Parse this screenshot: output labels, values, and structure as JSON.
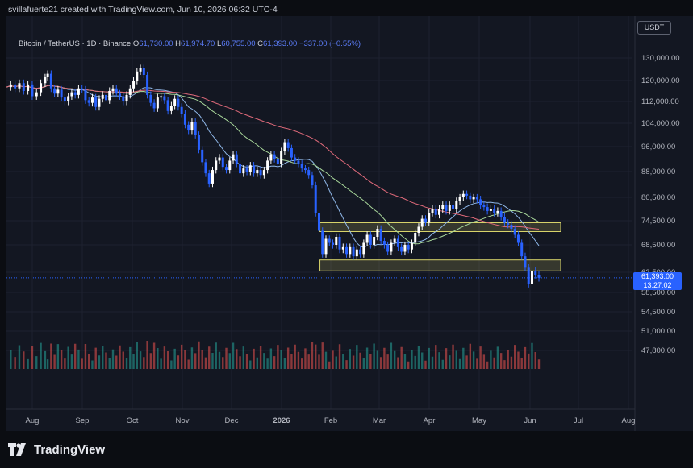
{
  "header": {
    "credit": "svillafuerte21 created with TradingView.com, Jun 10, 2026 06:32 UTC-4"
  },
  "legend": {
    "symbol": "Bitcoin / TetherUS · 1D · Binance",
    "o_label": "O",
    "o_value": "61,730.00",
    "h_label": "H",
    "h_value": "61,974.70",
    "l_label": "L",
    "l_value": "60,755.00",
    "c_label": "C",
    "c_value": "61,393.00",
    "change": "−337.00 (−0.55%)"
  },
  "currency": "USDT",
  "price_label": {
    "price": "61,393.00",
    "countdown": "13:27:02"
  },
  "brand": {
    "name": "TradingView"
  },
  "colors": {
    "background": "#131722",
    "up": "#ffffff",
    "down": "#2962ff",
    "ma_fast": "#8fb7e8",
    "ma_mid": "#a9d89b",
    "ma_slow": "#e06a7a",
    "zone": "#d7d36a",
    "vol_up": "#26a69a",
    "vol_down": "#ef5350"
  },
  "chart_data": {
    "type": "candlestick",
    "y_ticks": [
      "130,000.00",
      "120,000.00",
      "112,000.00",
      "104,000.00",
      "96,000.00",
      "88,000.00",
      "80,500.00",
      "74,500.00",
      "68,500.00",
      "62,500.00",
      "58,500.00",
      "54,500.00",
      "51,000.00",
      "47,800.00"
    ],
    "x_ticks": [
      "Aug",
      "Sep",
      "Oct",
      "Nov",
      "Dec",
      "2026",
      "Feb",
      "Mar",
      "Apr",
      "May",
      "Jun",
      "Jul",
      "Aug"
    ],
    "last_price": 61393,
    "zones": [
      {
        "low": 71800,
        "high": 74000
      },
      {
        "low": 62800,
        "high": 65200
      }
    ],
    "moving_averages": [
      "fast",
      "mid",
      "slow"
    ],
    "price_path": [
      [
        0,
        117500
      ],
      [
        5,
        118500
      ],
      [
        10,
        117000
      ],
      [
        15,
        119000
      ],
      [
        20,
        116000
      ],
      [
        25,
        118500
      ],
      [
        30,
        114000
      ],
      [
        35,
        115500
      ],
      [
        40,
        119000
      ],
      [
        45,
        121500
      ],
      [
        48,
        123000
      ],
      [
        52,
        117000
      ],
      [
        56,
        115000
      ],
      [
        60,
        116500
      ],
      [
        64,
        113500
      ],
      [
        68,
        112000
      ],
      [
        72,
        114000
      ],
      [
        76,
        115500
      ],
      [
        80,
        114500
      ],
      [
        84,
        117000
      ],
      [
        88,
        116500
      ],
      [
        92,
        112500
      ],
      [
        96,
        111500
      ],
      [
        100,
        113500
      ],
      [
        104,
        110000
      ],
      [
        108,
        113000
      ],
      [
        112,
        114500
      ],
      [
        116,
        112500
      ],
      [
        120,
        116000
      ],
      [
        124,
        117000
      ],
      [
        128,
        115000
      ],
      [
        132,
        114000
      ],
      [
        136,
        112000
      ],
      [
        140,
        114500
      ],
      [
        144,
        117000
      ],
      [
        148,
        120000
      ],
      [
        152,
        124000
      ],
      [
        156,
        125500
      ],
      [
        160,
        122500
      ],
      [
        164,
        114500
      ],
      [
        168,
        111500
      ],
      [
        172,
        109500
      ],
      [
        176,
        113500
      ],
      [
        180,
        114000
      ],
      [
        184,
        112500
      ],
      [
        188,
        108500
      ],
      [
        192,
        110500
      ],
      [
        196,
        113000
      ],
      [
        200,
        110000
      ],
      [
        204,
        107500
      ],
      [
        208,
        103500
      ],
      [
        212,
        101500
      ],
      [
        216,
        104500
      ],
      [
        220,
        100000
      ],
      [
        224,
        95000
      ],
      [
        228,
        91000
      ],
      [
        232,
        87500
      ],
      [
        236,
        84500
      ],
      [
        240,
        88500
      ],
      [
        244,
        91500
      ],
      [
        248,
        92500
      ],
      [
        252,
        89500
      ],
      [
        256,
        88500
      ],
      [
        260,
        91500
      ],
      [
        264,
        93500
      ],
      [
        268,
        90500
      ],
      [
        272,
        87500
      ],
      [
        276,
        89000
      ],
      [
        280,
        88000
      ],
      [
        284,
        90000
      ],
      [
        288,
        87500
      ],
      [
        292,
        88500
      ],
      [
        296,
        87000
      ],
      [
        300,
        88500
      ],
      [
        304,
        91500
      ],
      [
        308,
        93500
      ],
      [
        312,
        92000
      ],
      [
        316,
        90500
      ],
      [
        320,
        94500
      ],
      [
        324,
        97500
      ],
      [
        328,
        95500
      ],
      [
        332,
        92500
      ],
      [
        336,
        91500
      ],
      [
        340,
        90500
      ],
      [
        344,
        89000
      ],
      [
        348,
        88500
      ],
      [
        352,
        87000
      ],
      [
        356,
        84000
      ],
      [
        360,
        76500
      ],
      [
        364,
        72000
      ],
      [
        368,
        66500
      ],
      [
        372,
        70000
      ],
      [
        376,
        69000
      ],
      [
        380,
        68500
      ],
      [
        384,
        70500
      ],
      [
        388,
        67500
      ],
      [
        392,
        68000
      ],
      [
        396,
        66500
      ],
      [
        400,
        68000
      ],
      [
        404,
        66000
      ],
      [
        408,
        67500
      ],
      [
        412,
        66500
      ],
      [
        416,
        69000
      ],
      [
        420,
        71000
      ],
      [
        424,
        68500
      ],
      [
        428,
        70500
      ],
      [
        432,
        72500
      ],
      [
        436,
        69500
      ],
      [
        440,
        68500
      ],
      [
        444,
        67000
      ],
      [
        448,
        69000
      ],
      [
        452,
        70000
      ],
      [
        456,
        68000
      ],
      [
        460,
        67000
      ],
      [
        464,
        68500
      ],
      [
        468,
        67500
      ],
      [
        472,
        69000
      ],
      [
        476,
        71500
      ],
      [
        480,
        73000
      ],
      [
        484,
        75000
      ],
      [
        488,
        74000
      ],
      [
        492,
        76500
      ],
      [
        496,
        77500
      ],
      [
        500,
        76000
      ],
      [
        504,
        77500
      ],
      [
        508,
        78500
      ],
      [
        512,
        77000
      ],
      [
        516,
        78500
      ],
      [
        520,
        77500
      ],
      [
        524,
        79500
      ],
      [
        528,
        80500
      ],
      [
        532,
        81500
      ],
      [
        536,
        81000
      ],
      [
        540,
        80000
      ],
      [
        544,
        80500
      ],
      [
        548,
        80000
      ],
      [
        552,
        78500
      ],
      [
        556,
        78000
      ],
      [
        560,
        77000
      ],
      [
        564,
        77500
      ],
      [
        568,
        76500
      ],
      [
        572,
        77000
      ],
      [
        576,
        75500
      ],
      [
        580,
        74000
      ],
      [
        584,
        73500
      ],
      [
        588,
        72500
      ],
      [
        592,
        71000
      ],
      [
        596,
        69000
      ],
      [
        600,
        66000
      ],
      [
        604,
        63500
      ],
      [
        608,
        60200
      ],
      [
        612,
        62800
      ],
      [
        616,
        62000
      ],
      [
        620,
        61400
      ]
    ]
  }
}
